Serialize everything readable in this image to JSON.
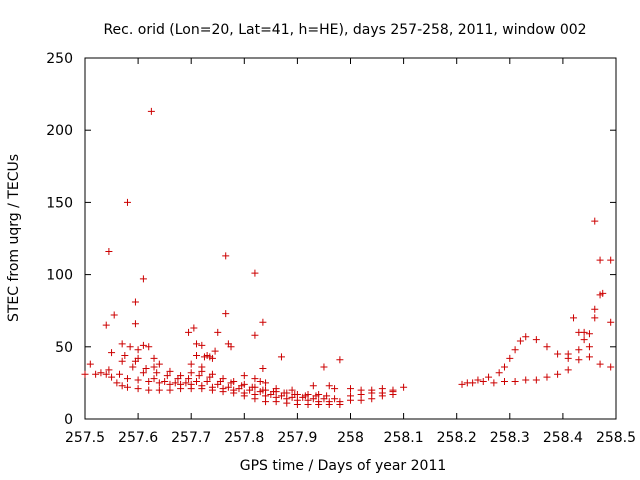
{
  "chart_data": {
    "type": "scatter",
    "title": "Rec. orid (Lon=20, Lat=41, h=HE), days 257-258, 2011, window 002",
    "xlabel": "GPS time / Days of year 2011",
    "ylabel": "STEC from uqrg / TECUs",
    "xlim": [
      257.5,
      258.5
    ],
    "ylim": [
      0,
      250
    ],
    "xticks": [
      "257.5",
      "257.6",
      "257.7",
      "257.8",
      "257.9",
      "258",
      "258.1",
      "258.2",
      "258.3",
      "258.4",
      "258.5"
    ],
    "yticks": [
      "0",
      "50",
      "100",
      "150",
      "200",
      "250"
    ],
    "grid": false,
    "marker": "+",
    "color": "#cc0000",
    "points": [
      [
        257.5,
        31
      ],
      [
        257.52,
        31
      ],
      [
        257.53,
        32
      ],
      [
        257.54,
        31
      ],
      [
        257.55,
        29
      ],
      [
        257.56,
        25
      ],
      [
        257.57,
        23
      ],
      [
        257.58,
        22
      ],
      [
        257.6,
        21
      ],
      [
        257.62,
        20
      ],
      [
        257.64,
        20
      ],
      [
        257.66,
        20
      ],
      [
        257.68,
        21
      ],
      [
        257.7,
        21
      ],
      [
        257.72,
        21
      ],
      [
        257.74,
        20
      ],
      [
        257.76,
        19
      ],
      [
        257.78,
        18
      ],
      [
        257.8,
        16
      ],
      [
        257.82,
        14
      ],
      [
        257.84,
        12
      ],
      [
        257.86,
        12
      ],
      [
        257.88,
        11
      ],
      [
        257.9,
        10
      ],
      [
        257.92,
        10
      ],
      [
        257.94,
        10
      ],
      [
        257.96,
        10
      ],
      [
        257.98,
        10
      ],
      [
        257.51,
        38
      ],
      [
        257.545,
        34
      ],
      [
        257.565,
        31
      ],
      [
        257.58,
        28
      ],
      [
        257.6,
        27
      ],
      [
        257.62,
        26
      ],
      [
        257.64,
        25
      ],
      [
        257.66,
        24
      ],
      [
        257.68,
        24
      ],
      [
        257.7,
        24
      ],
      [
        257.72,
        23
      ],
      [
        257.74,
        22
      ],
      [
        257.76,
        21
      ],
      [
        257.78,
        20
      ],
      [
        257.8,
        18
      ],
      [
        257.82,
        17
      ],
      [
        257.84,
        16
      ],
      [
        257.86,
        15
      ],
      [
        257.88,
        14
      ],
      [
        257.9,
        13
      ],
      [
        257.92,
        13
      ],
      [
        257.94,
        12
      ],
      [
        257.96,
        12
      ],
      [
        257.98,
        12
      ],
      [
        257.55,
        46
      ],
      [
        257.57,
        40
      ],
      [
        257.59,
        36
      ],
      [
        257.61,
        32
      ],
      [
        257.63,
        28
      ],
      [
        257.65,
        26
      ],
      [
        257.67,
        25
      ],
      [
        257.69,
        25
      ],
      [
        257.71,
        26
      ],
      [
        257.73,
        26
      ],
      [
        257.75,
        24
      ],
      [
        257.77,
        22
      ],
      [
        257.79,
        21
      ],
      [
        257.81,
        20
      ],
      [
        257.83,
        19
      ],
      [
        257.85,
        17
      ],
      [
        257.87,
        16
      ],
      [
        257.89,
        15
      ],
      [
        257.91,
        15
      ],
      [
        257.93,
        14
      ],
      [
        257.95,
        14
      ],
      [
        257.97,
        14
      ],
      [
        257.54,
        65
      ],
      [
        257.555,
        72
      ],
      [
        257.57,
        52
      ],
      [
        257.585,
        50
      ],
      [
        257.6,
        42
      ],
      [
        257.61,
        51
      ],
      [
        257.62,
        50
      ],
      [
        257.63,
        42
      ],
      [
        257.64,
        38
      ],
      [
        257.66,
        33
      ],
      [
        257.68,
        30
      ],
      [
        257.7,
        32
      ],
      [
        257.72,
        33
      ],
      [
        257.74,
        31
      ],
      [
        257.76,
        28
      ],
      [
        257.78,
        26
      ],
      [
        257.8,
        24
      ],
      [
        257.82,
        22
      ],
      [
        257.84,
        20
      ],
      [
        257.86,
        19
      ],
      [
        257.88,
        18
      ],
      [
        257.9,
        17
      ],
      [
        257.92,
        17
      ],
      [
        257.94,
        17
      ],
      [
        257.575,
        44
      ],
      [
        257.595,
        40
      ],
      [
        257.615,
        35
      ],
      [
        257.635,
        32
      ],
      [
        257.655,
        30
      ],
      [
        257.675,
        28
      ],
      [
        257.695,
        28
      ],
      [
        257.715,
        30
      ],
      [
        257.735,
        29
      ],
      [
        257.755,
        26
      ],
      [
        257.775,
        25
      ],
      [
        257.795,
        23
      ],
      [
        257.815,
        22
      ],
      [
        257.835,
        20
      ],
      [
        257.855,
        19
      ],
      [
        257.875,
        18
      ],
      [
        257.895,
        17
      ],
      [
        257.915,
        16
      ],
      [
        257.935,
        16
      ],
      [
        257.955,
        16
      ],
      [
        257.545,
        116
      ],
      [
        257.58,
        150
      ],
      [
        257.61,
        97
      ],
      [
        257.625,
        213
      ],
      [
        257.595,
        81
      ],
      [
        257.595,
        66
      ],
      [
        257.765,
        113
      ],
      [
        257.765,
        73
      ],
      [
        257.82,
        101
      ],
      [
        257.82,
        58
      ],
      [
        257.835,
        67
      ],
      [
        257.695,
        60
      ],
      [
        257.705,
        63
      ],
      [
        257.71,
        52
      ],
      [
        257.72,
        51
      ],
      [
        257.725,
        43
      ],
      [
        257.73,
        44
      ],
      [
        257.735,
        43
      ],
      [
        257.74,
        42
      ],
      [
        257.745,
        47
      ],
      [
        257.75,
        60
      ],
      [
        257.77,
        52
      ],
      [
        257.775,
        50
      ],
      [
        257.835,
        35
      ],
      [
        257.87,
        43
      ],
      [
        257.95,
        36
      ],
      [
        257.98,
        41
      ],
      [
        257.6,
        48
      ],
      [
        257.63,
        36
      ],
      [
        257.7,
        38
      ],
      [
        257.71,
        44
      ],
      [
        257.72,
        36
      ],
      [
        257.8,
        30
      ],
      [
        257.82,
        28
      ],
      [
        257.83,
        26
      ],
      [
        257.84,
        25
      ],
      [
        257.86,
        21
      ],
      [
        257.89,
        20
      ],
      [
        257.93,
        23
      ],
      [
        257.96,
        23
      ],
      [
        257.97,
        21
      ],
      [
        258.0,
        21
      ],
      [
        258.02,
        20
      ],
      [
        258.04,
        20
      ],
      [
        258.06,
        21
      ],
      [
        258.08,
        20
      ],
      [
        258.1,
        22
      ],
      [
        258.0,
        16
      ],
      [
        258.02,
        17
      ],
      [
        258.04,
        18
      ],
      [
        258.06,
        18
      ],
      [
        258.08,
        19
      ],
      [
        258.0,
        13
      ],
      [
        258.02,
        13
      ],
      [
        258.04,
        14
      ],
      [
        258.06,
        16
      ],
      [
        258.08,
        17
      ],
      [
        258.21,
        24
      ],
      [
        258.23,
        25
      ],
      [
        258.25,
        26
      ],
      [
        258.27,
        25
      ],
      [
        258.29,
        26
      ],
      [
        258.31,
        26
      ],
      [
        258.33,
        27
      ],
      [
        258.35,
        27
      ],
      [
        258.37,
        29
      ],
      [
        258.39,
        31
      ],
      [
        258.41,
        34
      ],
      [
        258.43,
        41
      ],
      [
        258.45,
        43
      ],
      [
        258.47,
        38
      ],
      [
        258.49,
        36
      ],
      [
        258.22,
        25
      ],
      [
        258.24,
        27
      ],
      [
        258.26,
        29
      ],
      [
        258.28,
        32
      ],
      [
        258.29,
        36
      ],
      [
        258.3,
        42
      ],
      [
        258.31,
        48
      ],
      [
        258.32,
        54
      ],
      [
        258.33,
        57
      ],
      [
        258.35,
        55
      ],
      [
        258.37,
        50
      ],
      [
        258.39,
        45
      ],
      [
        258.41,
        42
      ],
      [
        258.43,
        48
      ],
      [
        258.44,
        55
      ],
      [
        258.45,
        59
      ],
      [
        258.46,
        70
      ],
      [
        258.41,
        45
      ],
      [
        258.42,
        70
      ],
      [
        258.43,
        60
      ],
      [
        258.44,
        60
      ],
      [
        258.45,
        50
      ],
      [
        258.46,
        76
      ],
      [
        258.47,
        86
      ],
      [
        258.475,
        87
      ],
      [
        258.47,
        110
      ],
      [
        258.49,
        110
      ],
      [
        258.46,
        137
      ],
      [
        258.49,
        67
      ]
    ]
  }
}
